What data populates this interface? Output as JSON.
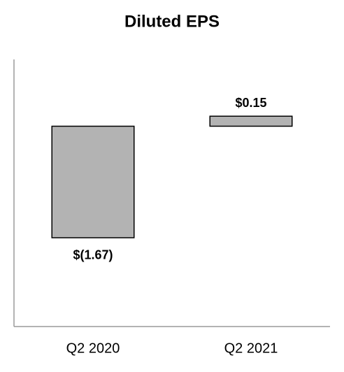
{
  "chart_data": {
    "type": "bar",
    "title": "Diluted EPS",
    "categories": [
      "Q2 2020",
      "Q2 2021"
    ],
    "values": [
      -1.67,
      0.15
    ],
    "value_labels": [
      "$(1.67)",
      "$0.15"
    ],
    "color": "#b3b3b3",
    "ylim": [
      -3,
      1
    ]
  }
}
